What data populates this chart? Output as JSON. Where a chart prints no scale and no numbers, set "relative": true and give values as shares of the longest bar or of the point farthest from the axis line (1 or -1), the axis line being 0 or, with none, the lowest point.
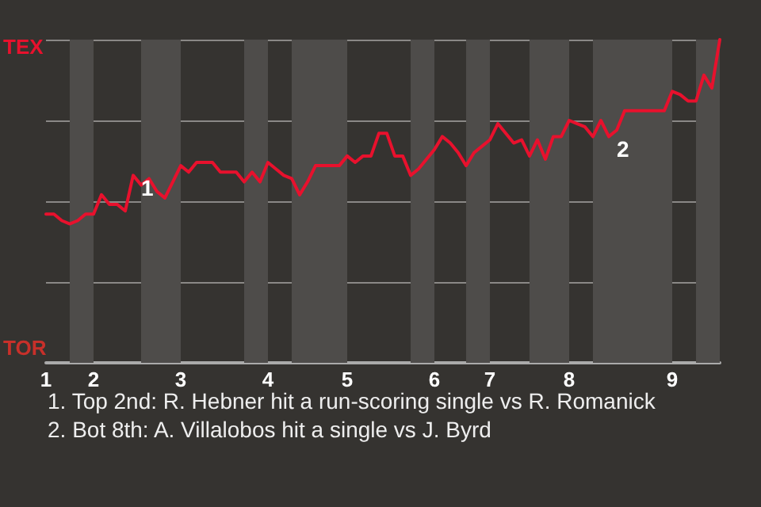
{
  "chart_data": {
    "type": "line",
    "relative": true,
    "categories": [
      "1",
      null,
      null,
      null,
      null,
      null,
      "2",
      null,
      null,
      null,
      null,
      null,
      null,
      null,
      null,
      null,
      null,
      "3",
      null,
      null,
      null,
      null,
      null,
      null,
      null,
      null,
      null,
      null,
      "4",
      null,
      null,
      null,
      null,
      null,
      null,
      null,
      null,
      null,
      "5",
      null,
      null,
      null,
      null,
      null,
      null,
      null,
      null,
      null,
      null,
      "6",
      null,
      null,
      null,
      null,
      null,
      null,
      "7",
      null,
      null,
      null,
      null,
      null,
      null,
      null,
      null,
      null,
      "8",
      null,
      null,
      null,
      null,
      null,
      null,
      null,
      null,
      null,
      null,
      null,
      null,
      "9",
      null,
      null,
      null,
      null,
      null,
      null
    ],
    "values": [
      0.46,
      0.46,
      0.44,
      0.43,
      0.44,
      0.46,
      0.46,
      0.52,
      0.49,
      0.49,
      0.47,
      0.58,
      0.55,
      0.57,
      0.53,
      0.51,
      0.56,
      0.61,
      0.59,
      0.62,
      0.62,
      0.62,
      0.59,
      0.59,
      0.59,
      0.56,
      0.59,
      0.56,
      0.62,
      0.6,
      0.58,
      0.57,
      0.52,
      0.56,
      0.61,
      0.61,
      0.61,
      0.61,
      0.64,
      0.62,
      0.64,
      0.64,
      0.71,
      0.71,
      0.64,
      0.64,
      0.58,
      0.6,
      0.63,
      0.66,
      0.7,
      0.68,
      0.65,
      0.61,
      0.65,
      0.67,
      0.69,
      0.74,
      0.71,
      0.68,
      0.69,
      0.64,
      0.69,
      0.63,
      0.7,
      0.7,
      0.75,
      0.74,
      0.73,
      0.7,
      0.75,
      0.7,
      0.72,
      0.78,
      0.78,
      0.78,
      0.78,
      0.78,
      0.78,
      0.84,
      0.83,
      0.81,
      0.81,
      0.89,
      0.85,
      1
    ],
    "color": "#e8112d",
    "marker": "none",
    "line_style": "solid",
    "grid": "y",
    "annotations": [
      "TEX",
      "TOR",
      "1",
      "2",
      "1. Top 2nd: R. Hebner hit a run-scoring single vs R. Romanick",
      "2. Bot 8th: A. Villalobos hit a single vs J. Byrd"
    ]
  }
}
